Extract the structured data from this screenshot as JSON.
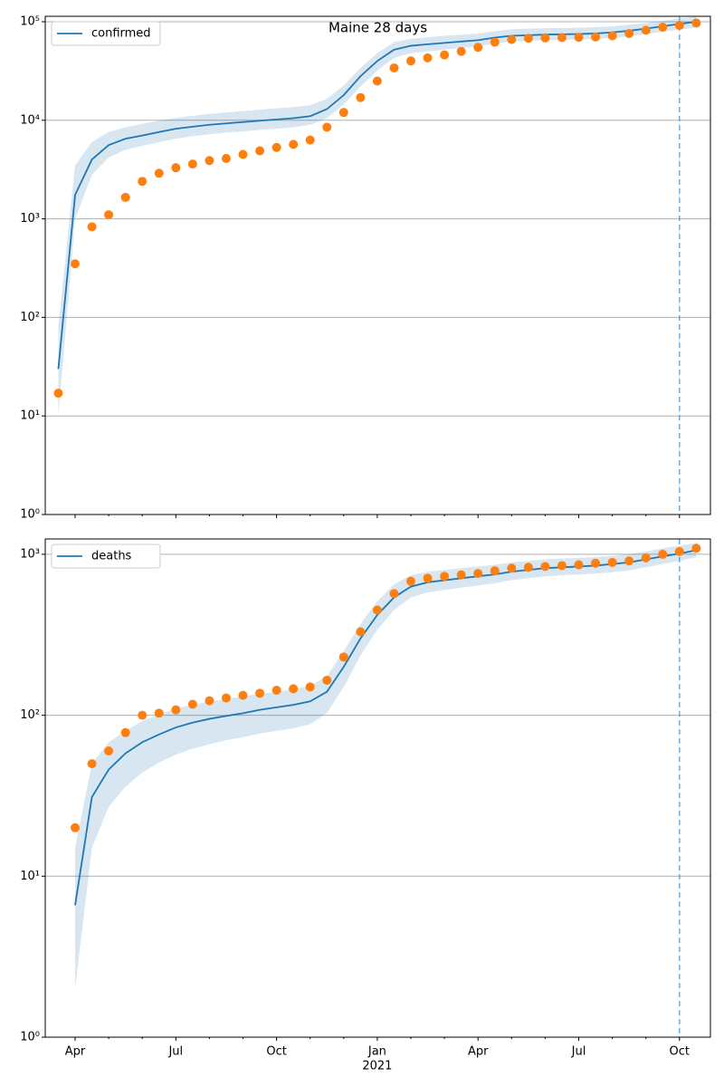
{
  "chart_data": [
    {
      "type": "line",
      "title": "Maine 28 days",
      "yscale": "log",
      "grid": true,
      "legend": "upper left",
      "categories": [
        null,
        null,
        null,
        null,
        null,
        null,
        null,
        null,
        null,
        null,
        null,
        null,
        null,
        null,
        null,
        null,
        null,
        null,
        null,
        null,
        null,
        null,
        null,
        null,
        null,
        null,
        null,
        null,
        null,
        null,
        null,
        null,
        null,
        null,
        null,
        null,
        null,
        null,
        null
      ],
      "ylim": [
        1,
        113500
      ],
      "yticks": [
        {
          "value": 1,
          "label": "10⁰"
        },
        {
          "value": 10,
          "label": "10¹"
        },
        {
          "value": 100,
          "label": "10²"
        },
        {
          "value": 1000,
          "label": "10³"
        },
        {
          "value": 10000,
          "label": "10⁴"
        },
        {
          "value": 100000,
          "label": "10⁵"
        }
      ],
      "series": [
        {
          "name": "confirmed",
          "color": "#1f77b4",
          "values": [
            30,
            1750,
            4000,
            5600,
            6500,
            7000,
            7600,
            8200,
            8600,
            9000,
            9300,
            9600,
            9900,
            10200,
            10500,
            11000,
            13000,
            18000,
            28000,
            40000,
            52000,
            57000,
            59000,
            61000,
            63000,
            65000,
            69000,
            72000,
            73000,
            74000,
            74500,
            75000,
            76000,
            78000,
            81000,
            85000,
            90000,
            95000,
            100000
          ],
          "band": {
            "low": [
              10,
              1000,
              2800,
              4200,
              5000,
              5500,
              6000,
              6500,
              6900,
              7200,
              7500,
              7700,
              8000,
              8200,
              8500,
              9000,
              10500,
              14500,
              22000,
              32000,
              43000,
              48000,
              50000,
              52000,
              54000,
              56000,
              60000,
              63000,
              64000,
              65000,
              65500,
              66000,
              67000,
              68500,
              71000,
              75000,
              79000,
              83000,
              87000
            ],
            "high": [
              80,
              3500,
              6000,
              7600,
              8500,
              9200,
              9900,
              10600,
              11100,
              11600,
              12000,
              12400,
              12800,
              13200,
              13600,
              14200,
              16500,
              22500,
              34000,
              48000,
              62000,
              67000,
              69500,
              72000,
              74000,
              76000,
              80000,
              84000,
              85000,
              86000,
              86500,
              87000,
              88000,
              90000,
              93000,
              97000,
              102000,
              108000,
              113000
            ]
          }
        },
        {
          "style": "scatter",
          "color": "#ff7f0e",
          "values": [
            17,
            350,
            830,
            1100,
            1650,
            2400,
            2900,
            3300,
            3600,
            3900,
            4100,
            4500,
            4900,
            5300,
            5700,
            6300,
            8500,
            12000,
            17000,
            25000,
            34000,
            40000,
            43000,
            46000,
            50000,
            55000,
            62000,
            66000,
            68000,
            68500,
            69000,
            69500,
            70000,
            72000,
            76000,
            82000,
            88000,
            92000,
            97000
          ]
        }
      ]
    },
    {
      "type": "line",
      "yscale": "log",
      "grid": true,
      "legend": "upper left",
      "year_label": "2021",
      "categories": [
        null,
        "Apr",
        null,
        null,
        null,
        null,
        null,
        "Jul",
        null,
        null,
        null,
        null,
        null,
        "Oct",
        null,
        null,
        null,
        null,
        null,
        "Jan",
        null,
        null,
        null,
        null,
        null,
        "Apr",
        null,
        null,
        null,
        null,
        null,
        "Jul",
        null,
        null,
        null,
        null,
        null,
        "Oct",
        null
      ],
      "ylim": [
        1,
        1245
      ],
      "yticks": [
        {
          "value": 1,
          "label": "10⁰"
        },
        {
          "value": 10,
          "label": "10¹"
        },
        {
          "value": 100,
          "label": "10²"
        },
        {
          "value": 1000,
          "label": "10³"
        }
      ],
      "series": [
        {
          "name": "deaths",
          "color": "#1f77b4",
          "values": [
            null,
            6.6,
            31,
            46,
            58,
            68,
            76,
            84,
            90,
            95,
            99,
            103,
            108,
            112,
            116,
            122,
            140,
            200,
            300,
            420,
            540,
            630,
            670,
            690,
            710,
            730,
            750,
            780,
            800,
            820,
            830,
            840,
            850,
            870,
            890,
            930,
            970,
            1010,
            1060
          ],
          "band": {
            "low": [
              null,
              2,
              15,
              27,
              36,
              44,
              51,
              57,
              62,
              66,
              70,
              73,
              77,
              80,
              83,
              88,
              103,
              150,
              235,
              340,
              450,
              540,
              580,
              600,
              620,
              640,
              660,
              690,
              710,
              730,
              740,
              750,
              760,
              775,
              795,
              830,
              870,
              910,
              960
            ],
            "high": [
              null,
              15,
              50,
              68,
              80,
              92,
              101,
              110,
              116,
              122,
              126,
              131,
              136,
              140,
              145,
              152,
              175,
              250,
              370,
              510,
              650,
              740,
              780,
              800,
              820,
              840,
              860,
              890,
              910,
              930,
              940,
              950,
              960,
              980,
              1000,
              1040,
              1090,
              1130,
              1180
            ]
          }
        },
        {
          "style": "scatter",
          "color": "#ff7f0e",
          "values": [
            null,
            20,
            50,
            60,
            78,
            100,
            103,
            108,
            117,
            123,
            128,
            133,
            137,
            143,
            146,
            150,
            165,
            230,
            330,
            450,
            570,
            680,
            710,
            730,
            745,
            760,
            790,
            820,
            830,
            840,
            850,
            860,
            880,
            890,
            910,
            950,
            1000,
            1040,
            1090
          ]
        }
      ]
    }
  ]
}
